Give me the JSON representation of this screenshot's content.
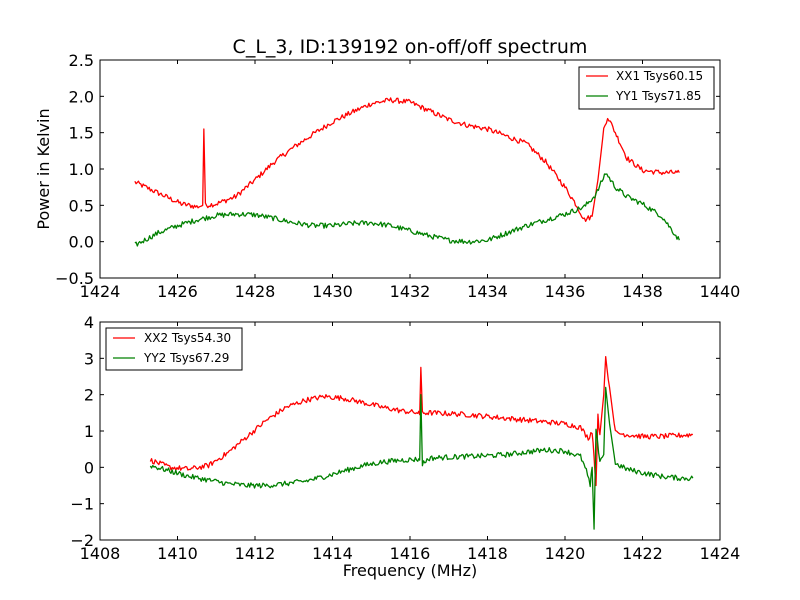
{
  "chart_data": [
    {
      "type": "line",
      "title": "C_L_3, ID:139192 on-off/off spectrum",
      "xlabel": "",
      "ylabel": "Power in Kelvin",
      "xlim": [
        1424,
        1440
      ],
      "ylim": [
        -0.5,
        2.5
      ],
      "xticks": [
        "1424",
        "1426",
        "1428",
        "1430",
        "1432",
        "1434",
        "1436",
        "1438",
        "1440"
      ],
      "yticks": [
        "−0.5",
        "0.0",
        "0.5",
        "1.0",
        "1.5",
        "2.0",
        "2.5"
      ],
      "xtick_values": [
        1424,
        1426,
        1428,
        1430,
        1432,
        1434,
        1436,
        1438,
        1440
      ],
      "ytick_values": [
        -0.5,
        0.0,
        0.5,
        1.0,
        1.5,
        2.0,
        2.5
      ],
      "legend_position": "top-right",
      "grid": false,
      "series": [
        {
          "name": "XX1 Tsys60.15",
          "color": "#ff0000",
          "x": [
            1424.9,
            1425.3,
            1425.7,
            1426.1,
            1426.5,
            1426.65,
            1426.68,
            1426.72,
            1427.0,
            1427.5,
            1428.0,
            1428.5,
            1429.0,
            1429.5,
            1430.0,
            1430.5,
            1431.0,
            1431.5,
            1432.0,
            1432.5,
            1433.0,
            1433.5,
            1434.0,
            1434.5,
            1435.0,
            1435.5,
            1436.0,
            1436.3,
            1436.5,
            1436.7,
            1436.85,
            1437.0,
            1437.1,
            1437.3,
            1437.6,
            1438.0,
            1438.5,
            1438.95
          ],
          "y": [
            0.82,
            0.72,
            0.62,
            0.52,
            0.48,
            0.5,
            1.55,
            0.5,
            0.52,
            0.62,
            0.85,
            1.1,
            1.3,
            1.48,
            1.65,
            1.78,
            1.9,
            1.95,
            1.92,
            1.8,
            1.68,
            1.6,
            1.55,
            1.45,
            1.35,
            1.1,
            0.75,
            0.5,
            0.3,
            0.35,
            0.85,
            1.55,
            1.72,
            1.5,
            1.15,
            0.98,
            0.95,
            0.95
          ]
        },
        {
          "name": "YY1 Tsys71.85",
          "color": "#008000",
          "x": [
            1424.9,
            1425.5,
            1426.0,
            1426.5,
            1427.0,
            1427.5,
            1428.0,
            1428.5,
            1429.0,
            1429.5,
            1430.0,
            1430.5,
            1431.0,
            1431.5,
            1432.0,
            1432.5,
            1433.0,
            1433.5,
            1434.0,
            1434.5,
            1435.0,
            1435.5,
            1436.0,
            1436.5,
            1436.8,
            1437.05,
            1437.3,
            1437.6,
            1438.0,
            1438.5,
            1438.95
          ],
          "y": [
            -0.05,
            0.12,
            0.22,
            0.3,
            0.36,
            0.38,
            0.37,
            0.32,
            0.26,
            0.22,
            0.22,
            0.25,
            0.26,
            0.22,
            0.15,
            0.08,
            0.02,
            0.0,
            0.02,
            0.12,
            0.22,
            0.3,
            0.38,
            0.48,
            0.65,
            0.95,
            0.75,
            0.62,
            0.52,
            0.35,
            0.02
          ]
        }
      ]
    },
    {
      "type": "line",
      "title": "",
      "xlabel": "Frequency (MHz)",
      "ylabel": "",
      "xlim": [
        1408,
        1424
      ],
      "ylim": [
        -2,
        4
      ],
      "xticks": [
        "1408",
        "1410",
        "1412",
        "1414",
        "1416",
        "1418",
        "1420",
        "1422",
        "1424"
      ],
      "yticks": [
        "−2",
        "−1",
        "0",
        "1",
        "2",
        "3",
        "4"
      ],
      "xtick_values": [
        1408,
        1410,
        1412,
        1414,
        1416,
        1418,
        1420,
        1422,
        1424
      ],
      "ytick_values": [
        -2,
        -1,
        0,
        1,
        2,
        3,
        4
      ],
      "legend_position": "top-left",
      "grid": false,
      "series": [
        {
          "name": "XX2 Tsys54.30",
          "color": "#ff0000",
          "x": [
            1409.3,
            1409.8,
            1410.3,
            1410.8,
            1411.3,
            1411.8,
            1412.3,
            1412.8,
            1413.3,
            1413.8,
            1414.3,
            1414.8,
            1415.3,
            1415.8,
            1416.2,
            1416.25,
            1416.28,
            1416.32,
            1416.5,
            1417.0,
            1417.5,
            1418.0,
            1418.5,
            1419.0,
            1419.5,
            1420.0,
            1420.4,
            1420.6,
            1420.7,
            1420.75,
            1420.8,
            1420.85,
            1420.9,
            1421.0,
            1421.05,
            1421.15,
            1421.3,
            1421.6,
            1422.0,
            1422.5,
            1423.0,
            1423.3
          ],
          "y": [
            0.2,
            0.0,
            -0.05,
            0.05,
            0.4,
            0.85,
            1.3,
            1.65,
            1.85,
            1.95,
            1.9,
            1.78,
            1.65,
            1.55,
            1.5,
            1.45,
            2.75,
            1.5,
            1.5,
            1.48,
            1.45,
            1.4,
            1.35,
            1.3,
            1.25,
            1.2,
            1.1,
            0.8,
            1.0,
            0.3,
            -0.5,
            1.4,
            0.9,
            2.0,
            3.05,
            2.2,
            0.95,
            0.9,
            0.85,
            0.85,
            0.88,
            0.9
          ]
        },
        {
          "name": "YY2 Tsys67.29",
          "color": "#008000",
          "x": [
            1409.3,
            1409.8,
            1410.3,
            1410.8,
            1411.3,
            1411.8,
            1412.3,
            1412.8,
            1413.3,
            1413.8,
            1414.3,
            1414.8,
            1415.3,
            1415.8,
            1416.2,
            1416.25,
            1416.28,
            1416.32,
            1416.5,
            1417.0,
            1417.5,
            1418.0,
            1418.5,
            1419.0,
            1419.5,
            1420.0,
            1420.4,
            1420.55,
            1420.65,
            1420.7,
            1420.75,
            1420.8,
            1420.9,
            1421.0,
            1421.05,
            1421.15,
            1421.3,
            1421.6,
            1422.0,
            1422.5,
            1423.0,
            1423.3
          ],
          "y": [
            0.05,
            -0.1,
            -0.25,
            -0.35,
            -0.45,
            -0.5,
            -0.5,
            -0.45,
            -0.38,
            -0.25,
            -0.1,
            0.05,
            0.15,
            0.2,
            0.22,
            0.2,
            2.0,
            0.1,
            0.25,
            0.28,
            0.3,
            0.32,
            0.35,
            0.42,
            0.48,
            0.45,
            0.3,
            -0.1,
            -0.5,
            0.0,
            -1.7,
            1.0,
            0.2,
            0.35,
            2.2,
            1.2,
            0.1,
            -0.05,
            -0.15,
            -0.25,
            -0.3,
            -0.3
          ]
        }
      ]
    }
  ]
}
